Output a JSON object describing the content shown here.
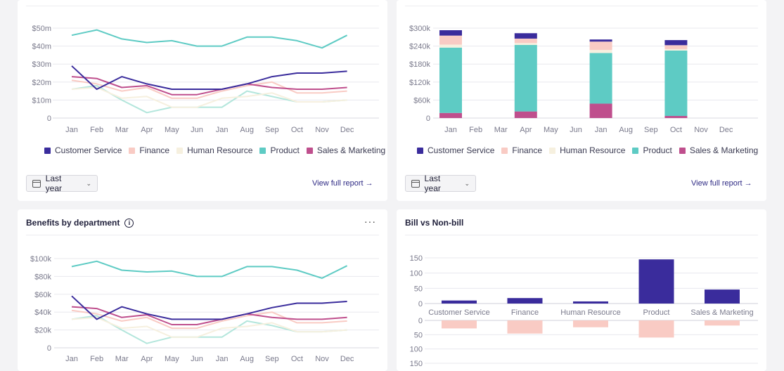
{
  "colors": {
    "customer_service": "#3a2c9c",
    "finance": "#f9cbc4",
    "human_resource": "#f6f0df",
    "product": "#5ecbc4",
    "sales_marketing": "#bf4f8d",
    "grid": "#e8e8ee",
    "link": "#2e2a84"
  },
  "legend": [
    "Customer Service",
    "Finance",
    "Human Resource",
    "Product",
    "Sales & Marketing"
  ],
  "top_left": {
    "dropdown_label": "Last year",
    "link_label": "View full report",
    "link_arrow": "→"
  },
  "top_right": {
    "dropdown_label": "Last year",
    "link_label": "View full report",
    "link_arrow": "→"
  },
  "bottom_left": {
    "title": "Benefits by department",
    "info_glyph": "i",
    "more_glyph": "···"
  },
  "bottom_right": {
    "title": "Bill vs Non-bill"
  },
  "chart_data": [
    {
      "id": "top-left-line",
      "type": "line",
      "x": [
        "Jan",
        "Feb",
        "Mar",
        "Apr",
        "May",
        "Jun",
        "Jan",
        "Aug",
        "Sep",
        "Oct",
        "Nov",
        "Dec"
      ],
      "y_ticks": [
        "0",
        "$10m",
        "$20m",
        "$30m",
        "$40m",
        "$50m"
      ],
      "ylim": [
        0,
        50
      ],
      "grid": true,
      "legend_position": "bottom",
      "series": [
        {
          "name": "Customer Service",
          "color": "#3a2c9c",
          "values": [
            29,
            16,
            23,
            19,
            16,
            16,
            16,
            19,
            23,
            25,
            25,
            26
          ]
        },
        {
          "name": "Finance",
          "color": "#f9cbc4",
          "values": [
            21,
            19,
            15,
            17,
            11,
            11,
            15,
            18,
            20,
            14,
            14,
            15
          ]
        },
        {
          "name": "Human Resource",
          "color": "#f6f0df",
          "values": [
            16,
            17,
            11,
            12,
            6,
            6,
            11,
            12,
            14,
            9,
            9,
            10
          ]
        },
        {
          "name": "Product",
          "color": "#5ecbc4",
          "values": [
            46,
            49,
            44,
            42,
            43,
            40,
            40,
            45,
            45,
            43,
            39,
            46
          ]
        },
        {
          "name": "Sales & Marketing",
          "color": "#bf4f8d",
          "values": [
            23,
            22,
            17,
            18,
            13,
            13,
            16,
            19,
            17,
            16,
            16,
            17
          ]
        },
        {
          "name": "",
          "color": "#b3e6dc",
          "values": [
            16,
            18,
            10,
            3,
            6,
            6,
            6,
            15,
            12,
            9,
            9,
            10
          ]
        }
      ]
    },
    {
      "id": "top-right-stacked",
      "type": "bar",
      "x": [
        "Jan",
        "Feb",
        "Mar",
        "Apr",
        "May",
        "Jun",
        "Jan",
        "Aug",
        "Sep",
        "Oct",
        "Nov",
        "Dec"
      ],
      "y_ticks": [
        "0",
        "$60k",
        "$120k",
        "$180k",
        "$240k",
        "$300k"
      ],
      "ylim": [
        0,
        300000
      ],
      "stacked": true,
      "legend_position": "bottom",
      "series": [
        {
          "name": "Sales & Marketing",
          "color": "#bf4f8d",
          "values": [
            17000,
            0,
            0,
            22000,
            0,
            0,
            48000,
            0,
            0,
            7000,
            0,
            0
          ]
        },
        {
          "name": "Product",
          "color": "#5ecbc4",
          "values": [
            218000,
            0,
            0,
            222000,
            0,
            0,
            169000,
            0,
            0,
            218000,
            0,
            0
          ]
        },
        {
          "name": "Human Resource",
          "color": "#f6f0df",
          "values": [
            10000,
            0,
            0,
            6000,
            0,
            0,
            10000,
            0,
            0,
            5000,
            0,
            0
          ]
        },
        {
          "name": "Finance",
          "color": "#f9cbc4",
          "values": [
            30000,
            0,
            0,
            15000,
            0,
            0,
            28000,
            0,
            0,
            13000,
            0,
            0
          ]
        },
        {
          "name": "Customer Service",
          "color": "#3a2c9c",
          "values": [
            18000,
            0,
            0,
            18000,
            0,
            0,
            7000,
            0,
            0,
            17000,
            0,
            0
          ]
        }
      ]
    },
    {
      "id": "bottom-left-line",
      "type": "line",
      "x": [
        "Jan",
        "Feb",
        "Mar",
        "Apr",
        "May",
        "Jun",
        "Jan",
        "Aug",
        "Sep",
        "Oct",
        "Nov",
        "Dec"
      ],
      "y_ticks": [
        "0",
        "$20k",
        "$40k",
        "$60k",
        "$80k",
        "$100k"
      ],
      "ylim": [
        0,
        100000
      ],
      "grid": true,
      "series": [
        {
          "name": "Customer Service",
          "color": "#3a2c9c",
          "values": [
            58000,
            32000,
            46000,
            38000,
            32000,
            32000,
            32000,
            38000,
            45000,
            50000,
            50000,
            52000
          ]
        },
        {
          "name": "Finance",
          "color": "#f9cbc4",
          "values": [
            42000,
            38000,
            30000,
            34000,
            22000,
            22000,
            30000,
            36000,
            40000,
            28000,
            28000,
            30000
          ]
        },
        {
          "name": "Human Resource",
          "color": "#f6f0df",
          "values": [
            32000,
            34000,
            22000,
            24000,
            12000,
            12000,
            22000,
            24000,
            28000,
            18000,
            18000,
            20000
          ]
        },
        {
          "name": "Product",
          "color": "#5ecbc4",
          "values": [
            91000,
            97000,
            87000,
            85000,
            86000,
            80000,
            80000,
            91000,
            91000,
            87000,
            78000,
            92000
          ]
        },
        {
          "name": "Sales & Marketing",
          "color": "#bf4f8d",
          "values": [
            46000,
            44000,
            34000,
            37000,
            26000,
            26000,
            32000,
            38000,
            34000,
            32000,
            32000,
            34000
          ]
        },
        {
          "name": "",
          "color": "#b3e6dc",
          "values": [
            32000,
            36000,
            20000,
            5000,
            12000,
            12000,
            12000,
            30000,
            25000,
            18000,
            18000,
            20000
          ]
        }
      ]
    },
    {
      "id": "bottom-right-diverging",
      "type": "bar",
      "categories": [
        "Customer Service",
        "Finance",
        "Human Resource",
        "Product",
        "Sales & Marketing"
      ],
      "y_ticks_top": [
        "0",
        "50",
        "100",
        "150"
      ],
      "y_ticks_bottom": [
        "0",
        "50",
        "100",
        "150"
      ],
      "ylim": [
        0,
        150
      ],
      "series": [
        {
          "name": "",
          "color": "#3a2c9c",
          "values": [
            10,
            18,
            7,
            145,
            46
          ]
        },
        {
          "name": "",
          "color": "#f9cbc4",
          "values": [
            28,
            46,
            24,
            60,
            18
          ]
        }
      ]
    }
  ]
}
